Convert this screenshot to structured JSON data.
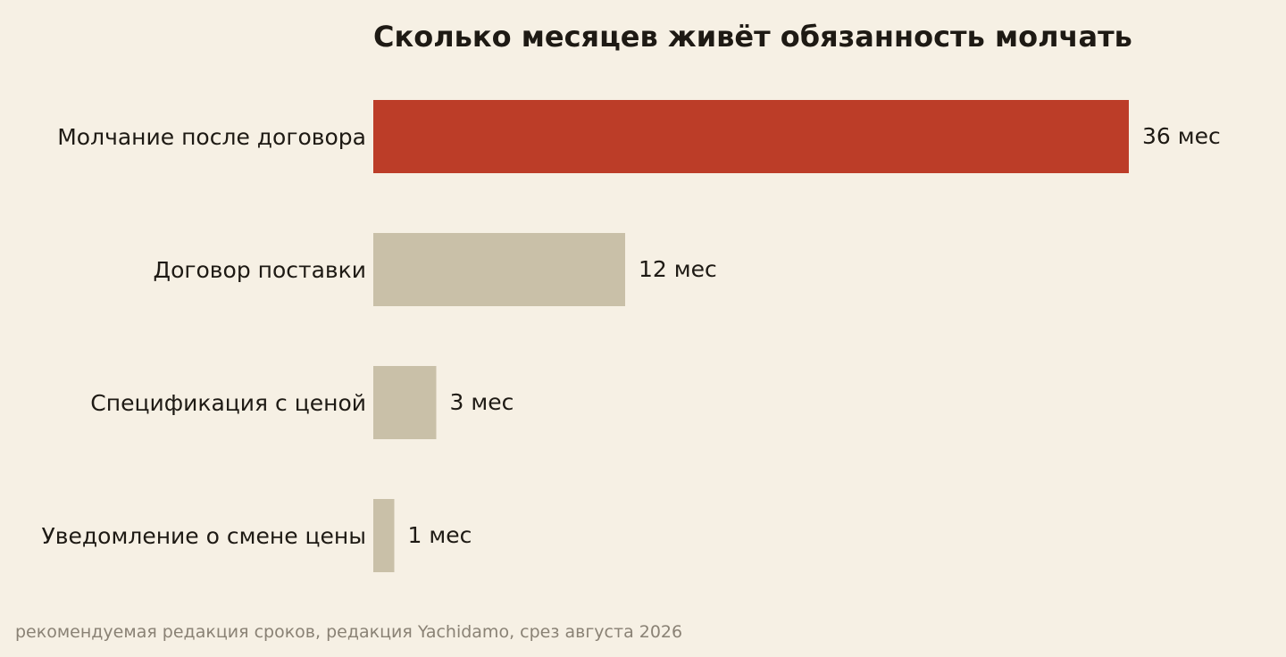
{
  "chart_data": {
    "type": "bar",
    "orientation": "horizontal",
    "title": "Сколько месяцев живёт обязанность молчать",
    "categories": [
      "Молчание после договора",
      "Договор поставки",
      "Спецификация с ценой",
      "Уведомление о смене цены"
    ],
    "values": [
      36,
      12,
      3,
      1
    ],
    "value_labels": [
      "36 мес",
      "12 мес",
      "3 мес",
      "1 мес"
    ],
    "unit": "мес",
    "xlim": [
      0,
      36
    ],
    "grid": false,
    "legend": "none",
    "colors": {
      "highlight": "#bc3d28",
      "default": "#c9c0a8",
      "background": "#f6f0e4",
      "text": "#1e1a14",
      "footnote": "#8a8275"
    },
    "highlight_index": 0
  },
  "footnote": "рекомендуемая редакция сроков, редакция Yachidamo, срез августа 2026"
}
